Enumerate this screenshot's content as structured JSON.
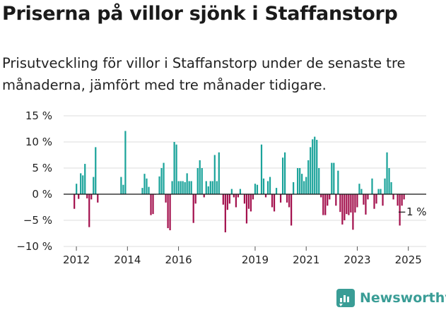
{
  "header": {
    "title": "Priserna på villor sjönk i Staffanstorp",
    "subtitle": "Prisutveckling för villor i Staffanstorp under de senaste tre månaderna, jämfört med tre månader tidigare."
  },
  "brand": {
    "name": "Newsworthy",
    "icon": "newsworthy-logo-icon"
  },
  "colors": {
    "positive": "#1aa39a",
    "negative": "#a3104d",
    "grid": "#dddddd",
    "brand": "#3a9d96"
  },
  "annotation": {
    "text": "−1 %"
  },
  "chart_data": {
    "type": "bar",
    "title": "Priserna på villor sjönk i Staffanstorp",
    "xlabel": "",
    "ylabel": "",
    "ylim": [
      -10,
      15
    ],
    "yticks": [
      -10,
      -5,
      0,
      5,
      10,
      15
    ],
    "ytick_labels": [
      "−10 %",
      "−5 %",
      "0 %",
      "5 %",
      "10 %",
      "15 %"
    ],
    "xtick_labels": [
      "2012",
      "2014",
      "2016",
      "2019",
      "2021",
      "2023",
      "2025"
    ],
    "xtick_positions": [
      2012.0,
      2014.0,
      2016.0,
      2019.0,
      2021.0,
      2023.0,
      2025.0
    ],
    "grid": true,
    "bar_period_years": 0.0833,
    "x_start": 2011.92,
    "values": [
      -2.8,
      2,
      -0.9,
      4,
      3.6,
      5.8,
      -0.8,
      -6.3,
      -1,
      3.3,
      9,
      -1.6,
      null,
      null,
      null,
      null,
      null,
      null,
      null,
      null,
      null,
      null,
      3.3,
      1.8,
      12.1,
      null,
      null,
      null,
      null,
      null,
      null,
      null,
      1.2,
      3.9,
      3,
      1.4,
      -4,
      -3.8,
      -0.1,
      null,
      3.4,
      5,
      6,
      -1.6,
      -6.5,
      -6.9,
      2.5,
      10,
      9.5,
      2.5,
      2.5,
      2.5,
      2.3,
      4,
      2.5,
      2.5,
      -5.5,
      -1.8,
      5,
      6.5,
      5,
      -0.6,
      2.5,
      1.5,
      2.5,
      2.5,
      7.5,
      2.5,
      8,
      null,
      -2,
      -7.3,
      -3,
      -1.8,
      1,
      -0.6,
      -2.5,
      -0.6,
      1,
      null,
      -1.8,
      -5.6,
      -2.8,
      -3.3,
      -1,
      2,
      1.8,
      null,
      9.5,
      3,
      -0.6,
      2.5,
      3.3,
      -2.5,
      -3.3,
      1.2,
      null,
      -1.6,
      7,
      8,
      -1.6,
      -2.5,
      -6,
      2.3,
      null,
      5,
      5,
      3.9,
      2.5,
      3.3,
      6.5,
      9,
      10.5,
      11,
      10.4,
      5,
      -0.6,
      -4,
      -4,
      -2.2,
      -1,
      6,
      6,
      -2.2,
      4.5,
      -3.4,
      -5.8,
      -5,
      -3.8,
      -4,
      -3.5,
      -6.8,
      -3.5,
      -2.5,
      2,
      1,
      -2,
      -3.9,
      -1,
      null,
      3,
      -2.8,
      -1.8,
      1,
      1,
      -2.2,
      3,
      8,
      5,
      2.3,
      -1,
      null,
      -2.2,
      -6,
      -2.2,
      -1
    ]
  }
}
